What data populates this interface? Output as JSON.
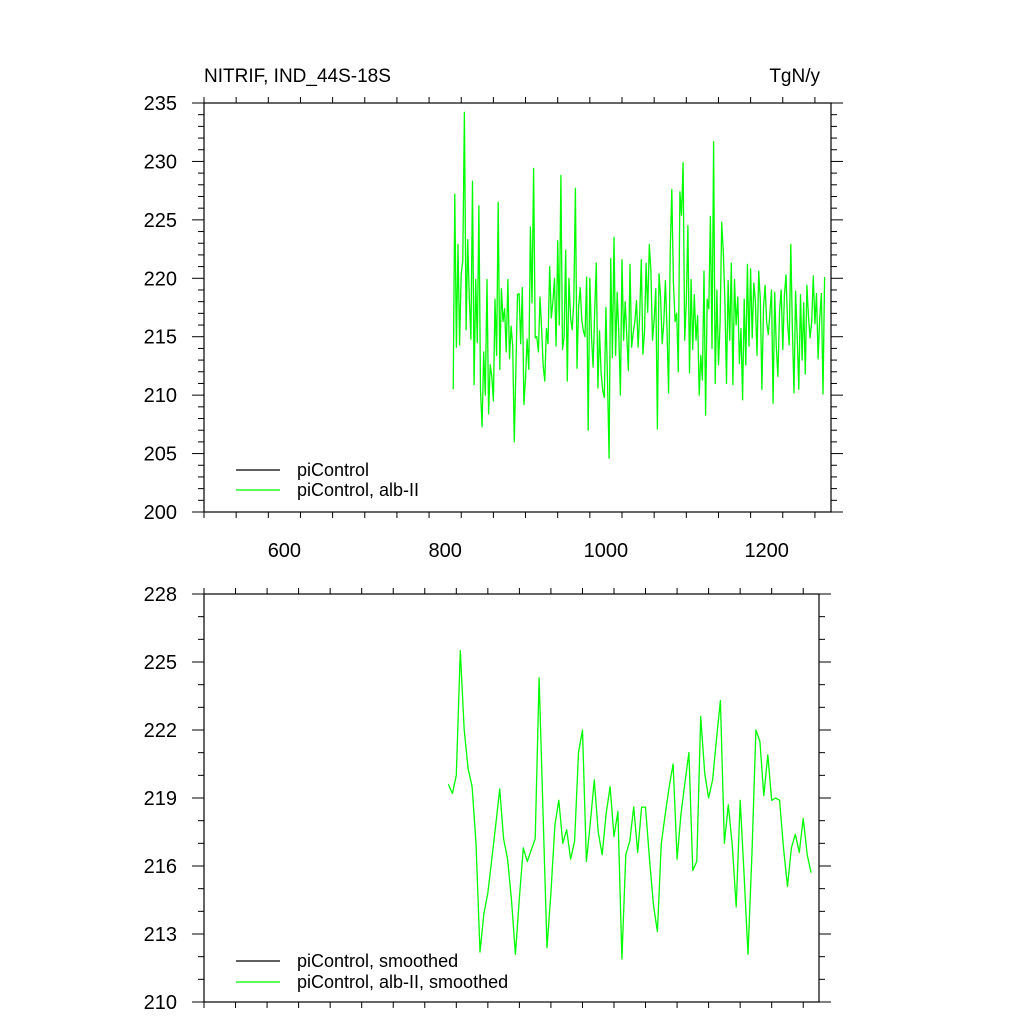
{
  "chart_data": [
    {
      "type": "line",
      "title_left": "NITRIF, IND_44S-18S",
      "title_right": "TgN/y",
      "xlim": [
        500,
        1280
      ],
      "ylim": [
        200,
        235
      ],
      "xticks": [
        600,
        800,
        1000,
        1200
      ],
      "yticks": [
        200,
        205,
        210,
        215,
        220,
        225,
        230,
        235
      ],
      "xtick_labels": [
        "600",
        "800",
        "1000",
        "1200"
      ],
      "ytick_labels": [
        "200",
        "205",
        "210",
        "215",
        "220",
        "225",
        "230",
        "235"
      ],
      "legend_position": "bottom-left",
      "series": [
        {
          "name": "piControl",
          "color": "#000000",
          "x": [],
          "y": []
        },
        {
          "name": "piControl, alb-II",
          "color": "#00ff00",
          "x_start": 810,
          "x_step": 2,
          "y": [
            210.5,
            227.2,
            214.1,
            222.9,
            214.3,
            220.4,
            221.5,
            234.2,
            215.6,
            223.3,
            218.3,
            214.8,
            228.3,
            210.9,
            219.9,
            214.5,
            226.2,
            210.4,
            207.3,
            213.7,
            210.0,
            219.9,
            208.4,
            212.6,
            211.6,
            209.5,
            218.2,
            213.4,
            226.5,
            212.2,
            219.1,
            216.3,
            217.4,
            213.7,
            219.9,
            213.1,
            215.9,
            214.2,
            206.0,
            212.3,
            218.6,
            218.7,
            214.4,
            219.2,
            209.2,
            211.4,
            214.8,
            212.2,
            224.4,
            217.9,
            229.4,
            214.9,
            215.0,
            213.7,
            218.4,
            215.7,
            212.5,
            211.2,
            215.7,
            214.4,
            221.0,
            216.6,
            218.0,
            220.0,
            214.2,
            223.2,
            216.0,
            228.8,
            213.9,
            215.0,
            222.4,
            211.2,
            220.0,
            216.6,
            215.6,
            218.0,
            227.7,
            212.3,
            217.5,
            219.2,
            216.4,
            215.5,
            215.0,
            220.1,
            207.0,
            220.0,
            215.0,
            212.4,
            217.2,
            221.3,
            210.6,
            215.5,
            211.9,
            210.4,
            209.8,
            217.5,
            211.3,
            204.6,
            221.7,
            213.2,
            223.5,
            213.4,
            218.8,
            215.2,
            210.0,
            221.6,
            214.7,
            218.0,
            215.0,
            212.1,
            221.2,
            214.1,
            215.4,
            216.3,
            218.1,
            214.1,
            216.9,
            221.6,
            213.5,
            215.4,
            221.3,
            217.1,
            222.9,
            220.6,
            214.7,
            216.5,
            219.1,
            207.1,
            220.4,
            218.4,
            214.4,
            216.2,
            219.8,
            215.6,
            210.2,
            222.2,
            227.6,
            219.7,
            216.3,
            217.0,
            212.0,
            227.4,
            225.4,
            229.9,
            214.7,
            218.0,
            224.5,
            211.9,
            219.9,
            213.9,
            218.6,
            214.7,
            216.8,
            210.0,
            213.4,
            211.3,
            220.6,
            208.3,
            218.2,
            217.4,
            225.3,
            214.0,
            231.7,
            211.0,
            219.0,
            212.6,
            216.2,
            224.8,
            222.3,
            218.0,
            211.0,
            219.8,
            214.7,
            221.3,
            210.9,
            219.9,
            216.0,
            218.4,
            212.7,
            215.7,
            209.6,
            218.2,
            212.6,
            221.2,
            214.2,
            220.8,
            214.9,
            219.6,
            218.0,
            213.4,
            220.6,
            218.2,
            210.5,
            217.5,
            219.4,
            216.2,
            215.2,
            217.0,
            219.0,
            209.3,
            218.8,
            214.1,
            211.6,
            217.3,
            219.0,
            213.9,
            218.5,
            220.3,
            216.1,
            214.3,
            222.9,
            215.6,
            210.2,
            218.9,
            215.0,
            210.5,
            218.6,
            213.0,
            217.9,
            211.8,
            219.4,
            216.7,
            214.9,
            216.3,
            220.2,
            216.1,
            218.7,
            213.1,
            216.6,
            218.7,
            210.1,
            220.1
          ]
        }
      ]
    },
    {
      "type": "line",
      "xlim": [
        500,
        1280
      ],
      "ylim": [
        210,
        228
      ],
      "xticks": [
        600,
        800,
        1000,
        1200
      ],
      "yticks": [
        210,
        213,
        216,
        219,
        222,
        225,
        228
      ],
      "ytick_labels": [
        "210",
        "213",
        "216",
        "219",
        "222",
        "225",
        "228"
      ],
      "legend_position": "bottom-left",
      "series": [
        {
          "name": "piControl, smoothed",
          "color": "#000000",
          "x": [],
          "y": []
        },
        {
          "name": "piControl, alb-II, smoothed",
          "color": "#00ff00",
          "x": [
            810,
            815,
            820,
            825,
            830,
            835,
            840,
            845,
            850,
            855,
            860,
            865,
            870,
            875,
            880,
            885,
            890,
            895,
            900,
            905,
            910,
            915,
            920,
            925,
            930,
            935,
            940,
            945,
            950,
            955,
            960,
            965,
            970,
            975,
            980,
            985,
            990,
            995,
            1000,
            1005,
            1010,
            1015,
            1020,
            1025,
            1030,
            1035,
            1040,
            1045,
            1050,
            1055,
            1060,
            1065,
            1070,
            1075,
            1080,
            1085,
            1090,
            1095,
            1100,
            1105,
            1110,
            1115,
            1120,
            1125,
            1130,
            1135,
            1140,
            1145,
            1150,
            1155,
            1160,
            1165,
            1170,
            1175,
            1180,
            1185,
            1190,
            1195,
            1200,
            1205,
            1210,
            1215,
            1220,
            1225,
            1230,
            1235,
            1240,
            1245,
            1250,
            1255,
            1260,
            1265,
            1270
          ],
          "y": [
            219.6,
            219.2,
            220.0,
            225.5,
            222.0,
            220.3,
            219.5,
            217.0,
            212.2,
            213.9,
            214.8,
            216.3,
            217.8,
            219.4,
            217.2,
            216.3,
            214.5,
            212.1,
            214.6,
            216.8,
            216.2,
            216.7,
            217.2,
            224.3,
            218.4,
            212.4,
            214.8,
            217.8,
            218.9,
            217.0,
            217.6,
            216.3,
            217.1,
            221.0,
            222.0,
            216.2,
            217.9,
            219.8,
            217.5,
            216.5,
            218.3,
            219.5,
            217.3,
            218.4,
            211.9,
            216.5,
            217.1,
            218.6,
            216.6,
            218.6,
            218.6,
            216.3,
            214.3,
            213.1,
            217.0,
            218.3,
            219.5,
            220.5,
            216.3,
            218.3,
            219.7,
            221.0,
            215.8,
            216.2,
            222.6,
            220.1,
            219.0,
            219.8,
            221.6,
            223.3,
            217.0,
            218.7,
            216.9,
            214.2,
            218.9,
            215.6,
            212.1,
            216.6,
            222.0,
            221.5,
            219.1,
            220.9,
            218.9,
            219.0,
            218.9,
            216.8,
            215.1,
            216.8,
            217.4,
            216.6,
            218.1,
            216.5,
            215.7
          ]
        }
      ]
    }
  ]
}
